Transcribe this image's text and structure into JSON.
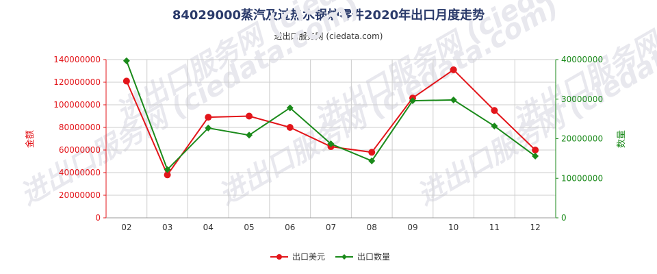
{
  "title": "84029000蒸汽及过热水锅炉零件2020年出口月度走势",
  "subtitle": "进出口服务网 (ciedata.com)",
  "watermark": "进出口服务网 (ciedata.com)",
  "colors": {
    "left_series": "#e3151a",
    "right_series": "#1a8a1a",
    "grid": "#cccccc",
    "title": "#2a3a6a"
  },
  "chart_data": {
    "type": "line",
    "categories": [
      "02",
      "03",
      "04",
      "05",
      "06",
      "07",
      "08",
      "09",
      "10",
      "11",
      "12"
    ],
    "left_axis": {
      "label": "金额",
      "range": [
        0,
        140000000
      ],
      "ticks": [
        "0",
        "20000000",
        "40000000",
        "60000000",
        "80000000",
        "100000000",
        "120000000",
        "140000000"
      ]
    },
    "right_axis": {
      "label": "数量",
      "range": [
        0,
        40000000
      ],
      "ticks": [
        "0",
        "10000000",
        "20000000",
        "30000000",
        "40000000"
      ]
    },
    "series": [
      {
        "name": "出口美元",
        "axis": "left",
        "color": "#e3151a",
        "marker": "circle",
        "values": [
          121000000,
          38000000,
          89000000,
          90000000,
          80000000,
          63000000,
          58000000,
          106000000,
          131000000,
          95000000,
          60000000
        ]
      },
      {
        "name": "出口数量",
        "axis": "right",
        "color": "#1a8a1a",
        "marker": "diamond",
        "values": [
          39700000,
          12200000,
          22700000,
          20900000,
          27800000,
          18700000,
          14400000,
          29600000,
          29800000,
          23200000,
          15600000
        ]
      }
    ],
    "grid": true,
    "legend_position": "bottom-center"
  }
}
